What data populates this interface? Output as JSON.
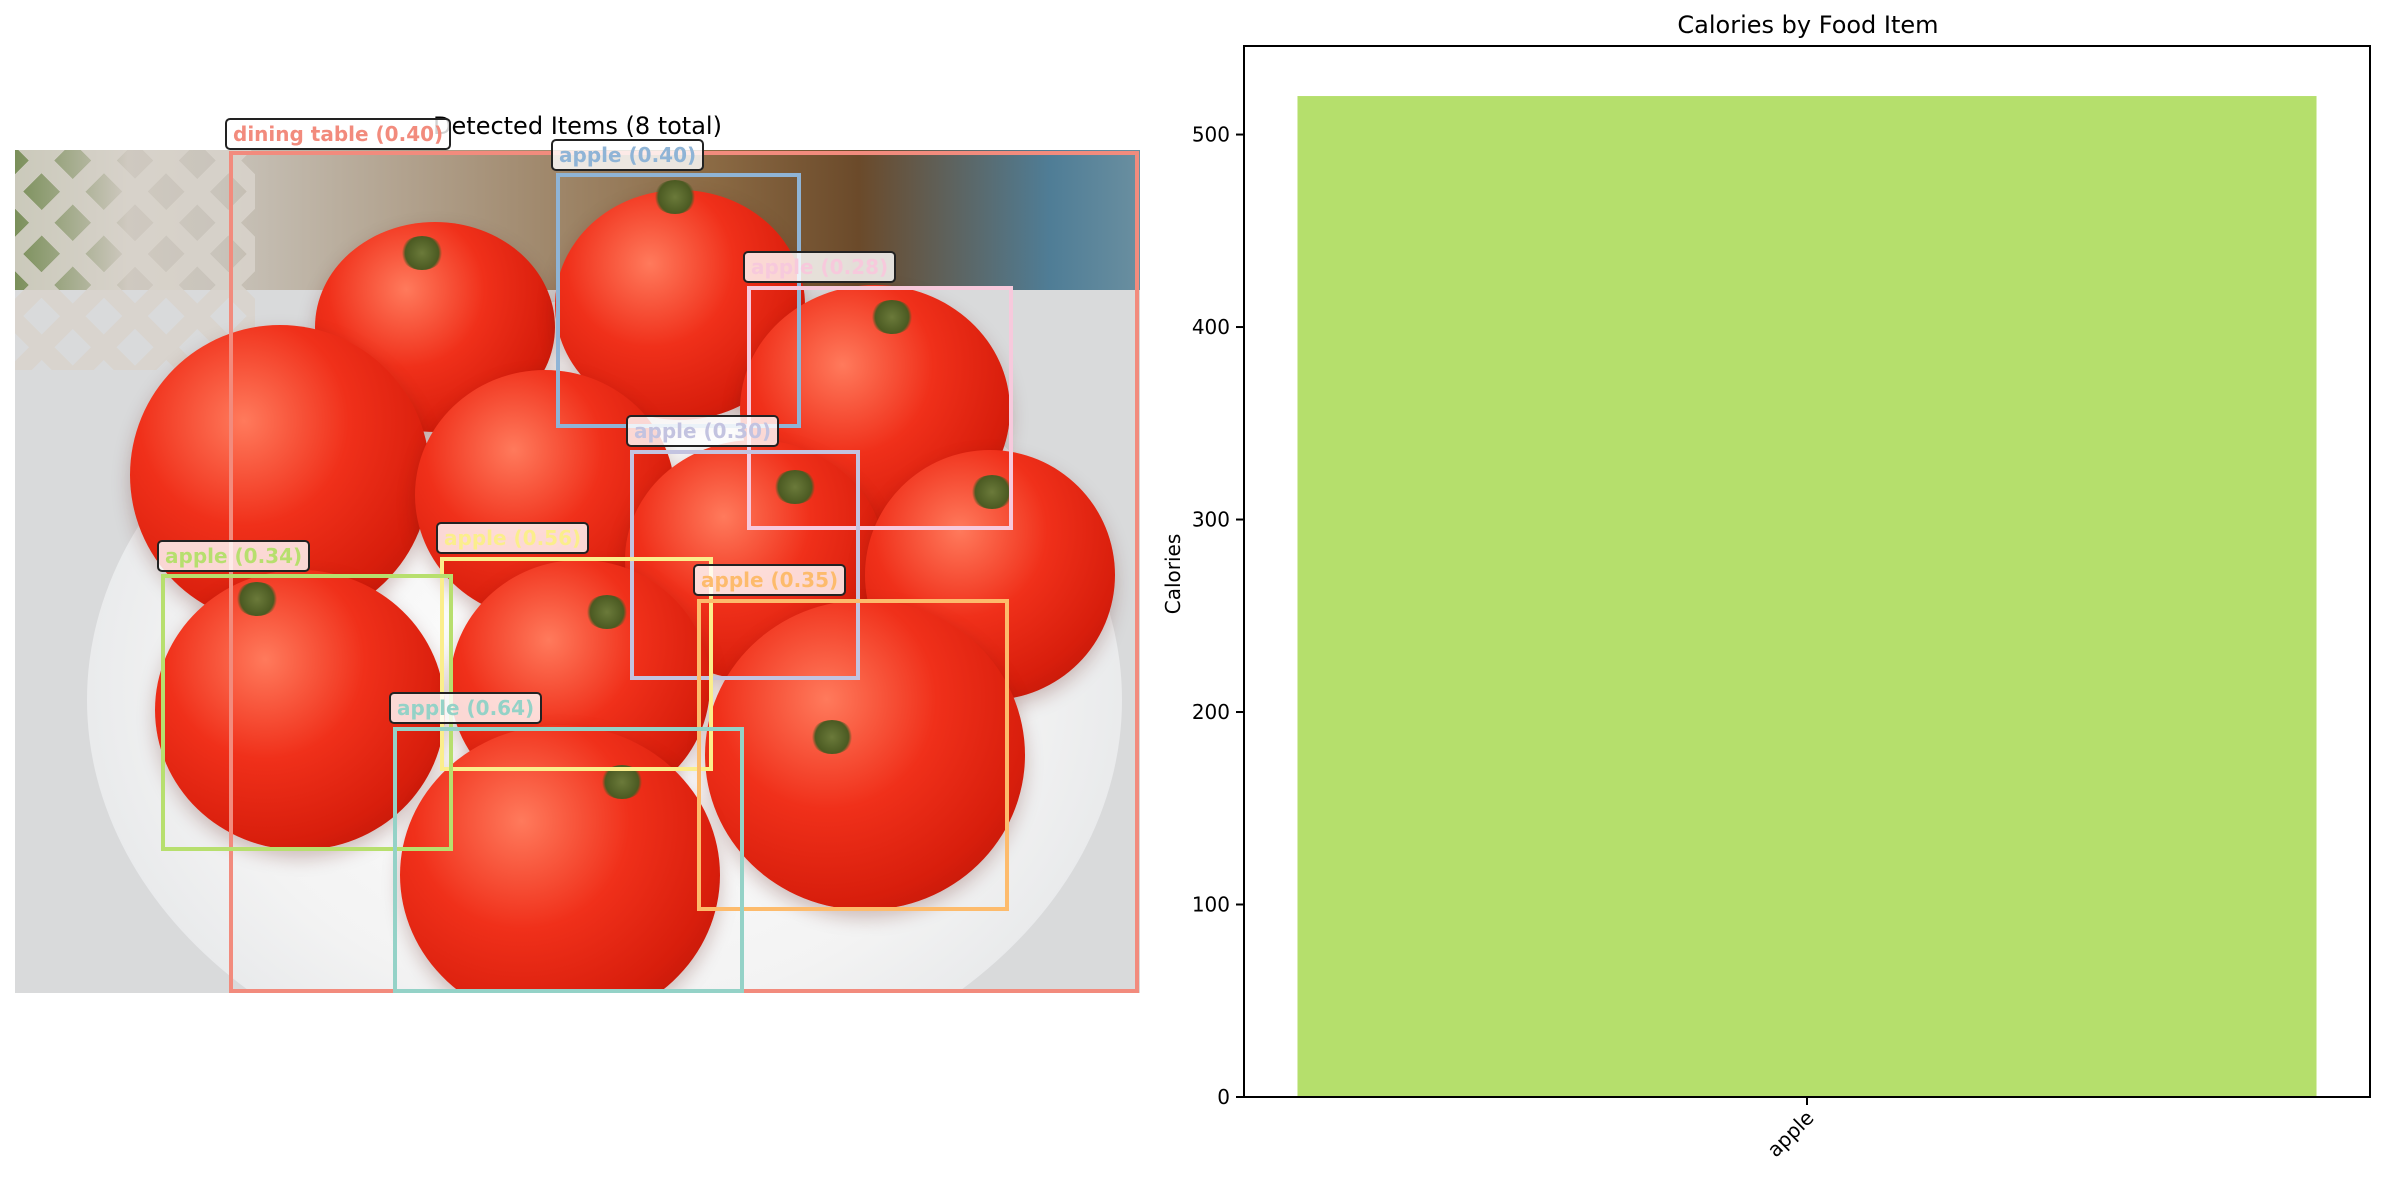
{
  "detection": {
    "title": "Detected Items (8 total)",
    "boxes": [
      {
        "label": "dining table (0.40)",
        "color": "#f28b7d"
      },
      {
        "label": "apple (0.40)",
        "color": "#8fb4d6"
      },
      {
        "label": "apple (0.28)",
        "color": "#f7c9dc"
      },
      {
        "label": "apple (0.30)",
        "color": "#c3c3e0"
      },
      {
        "label": "apple (0.56)",
        "color": "#fbee8c"
      },
      {
        "label": "apple (0.35)",
        "color": "#fdbb6c"
      },
      {
        "label": "apple (0.34)",
        "color": "#b7df6e"
      },
      {
        "label": "apple (0.64)",
        "color": "#94d2c7"
      }
    ]
  },
  "chart_data": {
    "type": "bar",
    "title": "Calories by Food Item",
    "xlabel": "",
    "ylabel": "Calories",
    "categories": [
      "apple"
    ],
    "values": [
      520
    ],
    "ylim": [
      0,
      546
    ],
    "yticks": [
      0,
      100,
      200,
      300,
      400,
      500
    ],
    "bar_color": "#b5df6c",
    "grid": false,
    "legend": "none"
  }
}
